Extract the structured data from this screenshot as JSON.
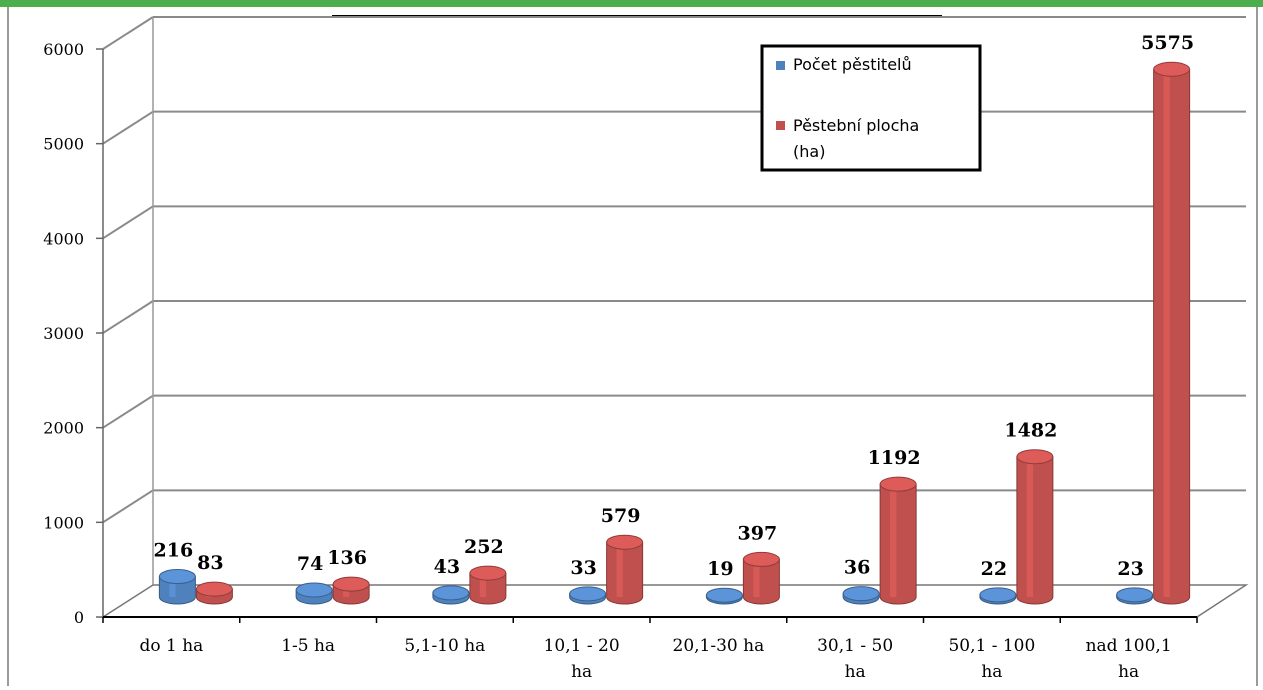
{
  "colors": {
    "top_bar": "#4cae4c",
    "series_1": "#4f81bd",
    "series_2": "#c0504d",
    "grid": "#8a8a8a",
    "frame": "#000000"
  },
  "chart_data": {
    "type": "bar",
    "style": "3d-cylinder",
    "categories": [
      [
        "do 1 ha"
      ],
      [
        "1-5 ha"
      ],
      [
        "5,1-10 ha"
      ],
      [
        "10,1 - 20",
        "ha"
      ],
      [
        "20,1-30 ha"
      ],
      [
        "30,1 - 50",
        "ha"
      ],
      [
        "50,1 - 100",
        "ha"
      ],
      [
        "nad 100,1",
        "ha"
      ]
    ],
    "series": [
      {
        "name": "Počet pěstitelů",
        "values": [
          216,
          74,
          43,
          33,
          19,
          36,
          22,
          23
        ]
      },
      {
        "name": "Pěstební plocha (ha)",
        "name_lines": [
          "Pěstební plocha",
          "(ha)"
        ],
        "values": [
          83,
          136,
          252,
          579,
          397,
          1192,
          1482,
          5575
        ]
      }
    ],
    "yticks": [
      "0",
      "1000",
      "2000",
      "3000",
      "4000",
      "5000",
      "6000"
    ],
    "ylim": [
      0,
      6000
    ],
    "grid": true,
    "legend_position": "top-right",
    "title": "",
    "xlabel": "",
    "ylabel": ""
  }
}
